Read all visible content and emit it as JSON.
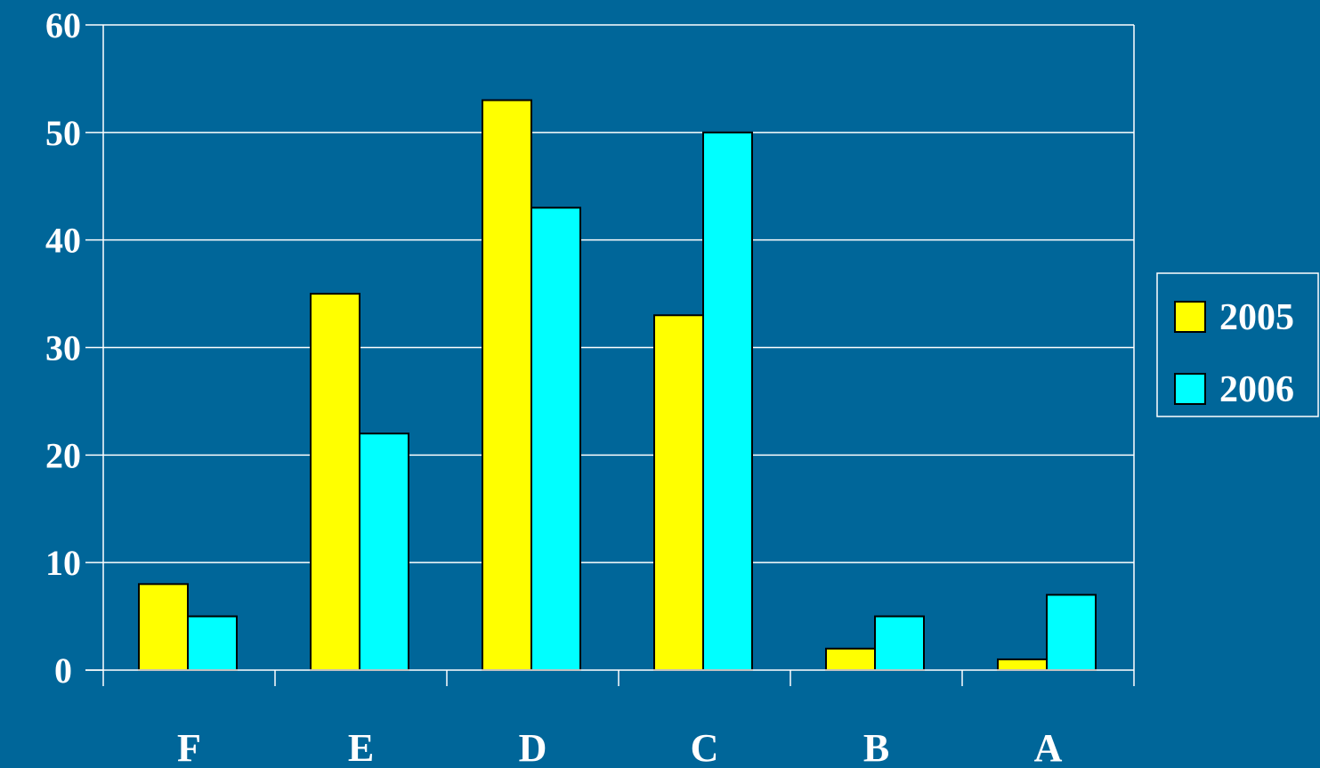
{
  "chart_data": {
    "type": "bar",
    "title": "",
    "xlabel": "",
    "ylabel": "",
    "categories": [
      "F",
      "E",
      "D",
      "C",
      "B",
      "A"
    ],
    "series": [
      {
        "name": "2005",
        "color": "#ffff00",
        "values": [
          8,
          35,
          53,
          33,
          2,
          1
        ]
      },
      {
        "name": "2006",
        "color": "#00ffff",
        "values": [
          5,
          22,
          43,
          50,
          5,
          7
        ]
      }
    ],
    "ylim": [
      0,
      60
    ],
    "yticks": [
      "0",
      "10",
      "20",
      "30",
      "40",
      "50",
      "60"
    ],
    "grid": true,
    "legend_position": "right",
    "background_color": "#006699",
    "axis_color": "#ffffff",
    "bar_stroke_color": "#000000"
  }
}
